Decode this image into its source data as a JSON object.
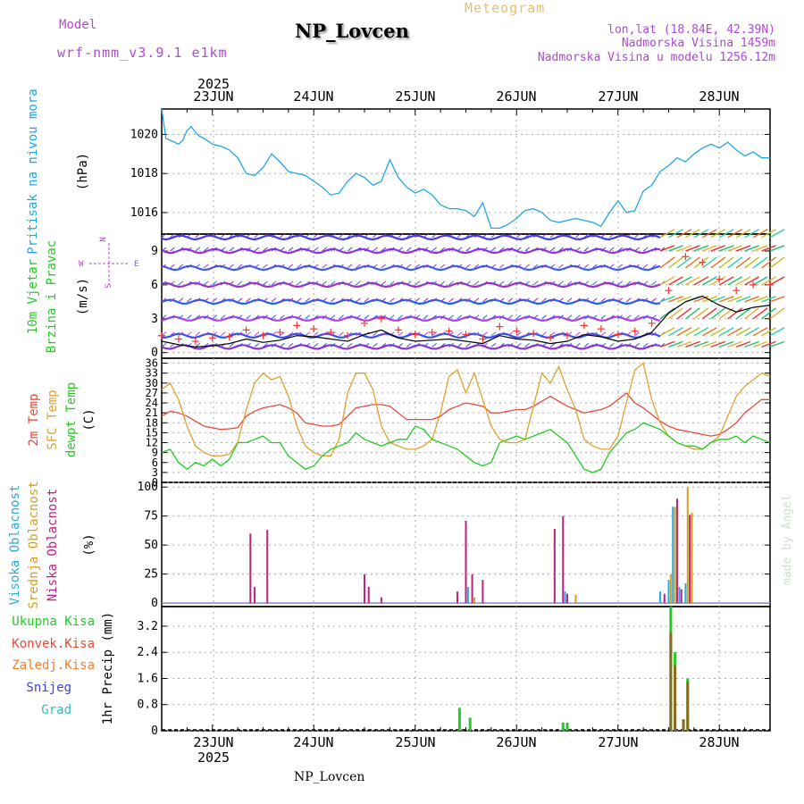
{
  "header": {
    "model_label": "Model",
    "model_name": "wrf-nmm_v3.9.1 e1km",
    "station": "NP_Lovcen",
    "title": "Meteogram",
    "lonlat": "lon,lat (18.84E, 42.39N)",
    "altitude": "Nadmorska Visina 1459m",
    "model_altitude": "Nadmorska Visina u modelu 1256.12m",
    "footer": "NP_Lovcen",
    "credit": "made by Angel"
  },
  "colors": {
    "pressure": "#1ea7e6",
    "wind_speed": "#000000",
    "gust": "#ff3030",
    "temp2m": "#e84a3a",
    "sfc": "#e0a030",
    "dew": "#22cc22",
    "high_cloud": "#2aaae0",
    "mid_cloud": "#d4a020",
    "low_cloud": "#c02080",
    "total_precip": "#22cc22",
    "conv_precip": "#e84a3a",
    "frozen_precip": "#f08030",
    "snow": "#4040dd",
    "hail": "#30c0c0",
    "magenta": "#b048d8"
  },
  "chart_data": [
    {
      "type": "line",
      "panel": "pressure",
      "ylabel_main": "Pritisak na nivou mora",
      "ylabel_unit": "(hPa)",
      "yticks": [
        "1016",
        "1018",
        "1020"
      ],
      "ylim": [
        1014.9,
        1021.3
      ],
      "xlim": [
        0,
        144
      ],
      "x_start_hour": 12,
      "x_axis_year": "2025",
      "x_axis_days": [
        "23JUN",
        "24JUN",
        "25JUN",
        "26JUN",
        "27JUN",
        "28JUN"
      ],
      "grid": true,
      "series": [
        {
          "color": "#1ea7e6",
          "x": [
            0,
            1,
            2,
            3,
            4,
            5,
            6,
            7,
            8,
            9,
            10,
            12,
            14,
            16,
            18,
            20,
            22,
            24,
            26,
            28,
            30,
            32,
            34,
            36,
            38,
            40,
            42,
            44,
            46,
            48,
            50,
            52,
            54,
            56,
            58,
            60,
            62,
            64,
            66,
            68,
            70,
            72,
            74,
            76,
            78,
            80,
            82,
            84,
            86,
            88,
            90,
            92,
            94,
            96,
            98,
            100,
            102,
            104,
            106,
            108,
            110,
            112,
            114,
            116,
            118,
            120,
            122,
            124,
            126,
            128,
            130,
            132,
            134,
            136,
            138,
            140,
            142,
            144
          ],
          "y": [
            1021.3,
            1019.8,
            1019.7,
            1019.6,
            1019.5,
            1019.7,
            1020.2,
            1020.4,
            1020.1,
            1019.9,
            1019.8,
            1019.5,
            1019.4,
            1019.2,
            1018.8,
            1018,
            1017.9,
            1018.3,
            1019,
            1018.6,
            1018.1,
            1018,
            1017.9,
            1017.6,
            1017.3,
            1016.9,
            1017,
            1017.6,
            1018,
            1017.8,
            1017.4,
            1017.6,
            1018.7,
            1017.8,
            1017.3,
            1017,
            1017.2,
            1016.9,
            1016.4,
            1016.2,
            1016.2,
            1016.1,
            1015.8,
            1016.5,
            1015.2,
            1015.2,
            1015.4,
            1015.7,
            1016.1,
            1016.2,
            1016.0,
            1015.6,
            1015.5,
            1015.6,
            1015.7,
            1015.6,
            1015.5,
            1015.3,
            1016.0,
            1016.6,
            1016.0,
            1016.1,
            1017.1,
            1017.4,
            1018.1,
            1018.4,
            1018.8,
            1018.6,
            1019.0,
            1019.3,
            1019.5,
            1019.3,
            1019.6,
            1019.2,
            1018.9,
            1019.1,
            1018.8,
            1018.8
          ]
        }
      ]
    },
    {
      "type": "line",
      "panel": "wind",
      "ylabel_main": "10m Vjetar",
      "ylabel_sub": "Brzina i Pravac",
      "ylabel_unit": "(m/s)",
      "direction_key": [
        "N",
        "W",
        "E",
        "S"
      ],
      "yticks": [
        "0",
        "3",
        "6",
        "9"
      ],
      "ylim": [
        -0.5,
        10.5
      ],
      "xlim": [
        0,
        144
      ],
      "grid": true,
      "series": [
        {
          "name": "wind speed",
          "color": "#000000",
          "x": [
            0,
            4,
            8,
            12,
            16,
            20,
            24,
            28,
            32,
            36,
            40,
            44,
            48,
            52,
            56,
            60,
            64,
            68,
            72,
            76,
            80,
            84,
            88,
            92,
            96,
            100,
            104,
            108,
            112,
            116,
            120,
            124,
            128,
            132,
            136,
            140,
            144
          ],
          "y": [
            1.0,
            0.7,
            0.5,
            0.6,
            0.8,
            1.2,
            0.9,
            1.1,
            1.5,
            1.4,
            1.2,
            1.0,
            1.6,
            2.0,
            1.3,
            1.0,
            1.1,
            1.2,
            1.0,
            0.8,
            1.5,
            1.2,
            1.1,
            0.8,
            1.0,
            1.6,
            1.4,
            1.0,
            1.2,
            1.8,
            3.5,
            4.5,
            5.0,
            4.2,
            3.6,
            4.0,
            4.2
          ]
        },
        {
          "name": "gust",
          "color": "#ff3030",
          "x": [
            0,
            4,
            8,
            12,
            16,
            20,
            24,
            28,
            32,
            36,
            40,
            44,
            48,
            52,
            56,
            60,
            64,
            68,
            72,
            76,
            80,
            84,
            88,
            92,
            96,
            100,
            104,
            108,
            112,
            116,
            120,
            124,
            128,
            132,
            136,
            140,
            144
          ],
          "y": [
            1.5,
            1.2,
            1.0,
            1.3,
            1.4,
            2.0,
            1.5,
            1.8,
            2.4,
            2.1,
            1.8,
            1.5,
            2.6,
            3.0,
            2.0,
            1.6,
            1.8,
            1.9,
            1.6,
            1.2,
            2.3,
            1.9,
            1.7,
            1.3,
            1.5,
            2.4,
            2.1,
            1.6,
            1.9,
            2.6,
            5.5,
            8.5,
            8.0,
            6.5,
            5.5,
            6.0,
            6.0
          ]
        }
      ]
    },
    {
      "type": "line",
      "panel": "temperature",
      "ylabel_main": "2m Temp",
      "ylabel_sub": "SFC Temp",
      "ylabel_sub2": "dewpt Temp",
      "ylabel_unit": "(C)",
      "yticks": [
        "0",
        "3",
        "6",
        "9",
        "12",
        "15",
        "18",
        "21",
        "24",
        "27",
        "30",
        "33",
        "36"
      ],
      "ylim": [
        0,
        37.5
      ],
      "xlim": [
        0,
        144
      ],
      "grid": true,
      "series": [
        {
          "name": "2m Temp",
          "color": "#e84a3a",
          "x": [
            0,
            2,
            4,
            6,
            8,
            10,
            12,
            14,
            16,
            18,
            20,
            22,
            24,
            26,
            28,
            30,
            32,
            34,
            36,
            38,
            40,
            42,
            44,
            46,
            48,
            50,
            52,
            54,
            56,
            58,
            60,
            62,
            64,
            66,
            68,
            70,
            72,
            74,
            76,
            78,
            80,
            82,
            84,
            86,
            88,
            90,
            92,
            94,
            96,
            98,
            100,
            102,
            104,
            106,
            108,
            110,
            112,
            114,
            116,
            118,
            120,
            122,
            124,
            126,
            128,
            130,
            132,
            134,
            136,
            138,
            140,
            142,
            144
          ],
          "y": [
            20,
            21.5,
            21,
            20,
            18.5,
            17,
            16.5,
            16,
            16.2,
            16.5,
            20,
            21.5,
            22.5,
            23,
            23.5,
            22.5,
            21,
            18,
            17.5,
            17,
            17,
            17.5,
            20,
            22.5,
            23,
            23.5,
            23.5,
            23,
            21,
            19,
            19,
            19,
            19,
            20,
            22,
            23,
            24,
            23.5,
            23,
            21,
            21,
            21.5,
            22,
            22,
            23,
            24.5,
            26,
            24.5,
            23,
            22,
            21,
            21.5,
            22,
            23,
            25,
            27,
            24,
            22.5,
            20.5,
            18.5,
            17,
            16,
            15.5,
            15,
            14.5,
            14,
            14.5,
            16,
            18,
            21,
            23,
            25,
            25
          ]
        },
        {
          "name": "SFC Temp",
          "color": "#e0a030",
          "x": [
            0,
            2,
            4,
            6,
            8,
            10,
            12,
            14,
            16,
            18,
            20,
            22,
            24,
            26,
            28,
            30,
            32,
            34,
            36,
            38,
            40,
            42,
            44,
            46,
            48,
            50,
            52,
            54,
            56,
            58,
            60,
            62,
            64,
            66,
            68,
            70,
            72,
            74,
            76,
            78,
            80,
            82,
            84,
            86,
            88,
            90,
            92,
            94,
            96,
            98,
            100,
            102,
            104,
            106,
            108,
            110,
            112,
            114,
            116,
            118,
            120,
            122,
            124,
            126,
            128,
            130,
            132,
            134,
            136,
            138,
            140,
            142,
            144
          ],
          "y": [
            28,
            30,
            25,
            17,
            11,
            9,
            8,
            8,
            8.5,
            12,
            22,
            30,
            33,
            31,
            32,
            26,
            17,
            11,
            9,
            8,
            8,
            13,
            27,
            33,
            33,
            28,
            17,
            12,
            11,
            10,
            10,
            11,
            13,
            21,
            32,
            34,
            27,
            33,
            25,
            17,
            13,
            12,
            12,
            13,
            23,
            33,
            30,
            35,
            28,
            22,
            13,
            11,
            10,
            10,
            14,
            24,
            34,
            36,
            25,
            18,
            14,
            12,
            11,
            10,
            10,
            12,
            14,
            20,
            26,
            29,
            31,
            33,
            32
          ]
        },
        {
          "name": "dewpt Temp",
          "color": "#22cc22",
          "x": [
            0,
            2,
            4,
            6,
            8,
            10,
            12,
            14,
            16,
            18,
            20,
            22,
            24,
            26,
            28,
            30,
            32,
            34,
            36,
            38,
            40,
            42,
            44,
            46,
            48,
            50,
            52,
            54,
            56,
            58,
            60,
            62,
            64,
            66,
            68,
            70,
            72,
            74,
            76,
            78,
            80,
            82,
            84,
            86,
            88,
            90,
            92,
            94,
            96,
            98,
            100,
            102,
            104,
            106,
            108,
            110,
            112,
            114,
            116,
            118,
            120,
            122,
            124,
            126,
            128,
            130,
            132,
            134,
            136,
            138,
            140,
            142,
            144
          ],
          "y": [
            9,
            10,
            6,
            4,
            6,
            5,
            7,
            5,
            7,
            12,
            12,
            13,
            14,
            12,
            12,
            8,
            6,
            4,
            5,
            8,
            10,
            11,
            12,
            15,
            13,
            12,
            11,
            12,
            13,
            13,
            17,
            16,
            13,
            12,
            11,
            10,
            8,
            6,
            5,
            6,
            12,
            13,
            14,
            13,
            14,
            15,
            16,
            14,
            12,
            8,
            4,
            3,
            4,
            9,
            12,
            15,
            16,
            18,
            17,
            16,
            14,
            12,
            11,
            11,
            10,
            12,
            13,
            13,
            14,
            12,
            14,
            13,
            12
          ]
        }
      ]
    },
    {
      "type": "bar",
      "panel": "clouds",
      "ylabel_main": "Visoka Oblacnost",
      "ylabel_sub": "Srednja Oblacnost",
      "ylabel_sub2": "Niska Oblacnost",
      "ylabel_unit": "(%)",
      "yticks": [
        "0",
        "25",
        "50",
        "75",
        "100"
      ],
      "ylim": [
        -3,
        104
      ],
      "xlim": [
        0,
        144
      ],
      "grid": true,
      "bars": [
        {
          "x": 21,
          "value": 60,
          "layer": "low"
        },
        {
          "x": 22,
          "value": 14,
          "layer": "low"
        },
        {
          "x": 25,
          "value": 63,
          "layer": "low"
        },
        {
          "x": 48,
          "value": 25,
          "layer": "low"
        },
        {
          "x": 49,
          "value": 14,
          "layer": "low"
        },
        {
          "x": 52,
          "value": 5,
          "layer": "low"
        },
        {
          "x": 70,
          "value": 10,
          "layer": "low"
        },
        {
          "x": 72,
          "value": 71,
          "layer": "low"
        },
        {
          "x": 72.5,
          "value": 14,
          "layer": "high"
        },
        {
          "x": 73.5,
          "value": 25,
          "layer": "low"
        },
        {
          "x": 74,
          "value": 5,
          "layer": "mid"
        },
        {
          "x": 76,
          "value": 20,
          "layer": "low"
        },
        {
          "x": 93,
          "value": 64,
          "layer": "low"
        },
        {
          "x": 95,
          "value": 75,
          "layer": "low"
        },
        {
          "x": 95.5,
          "value": 10,
          "layer": "high"
        },
        {
          "x": 96,
          "value": 8,
          "layer": "low"
        },
        {
          "x": 98,
          "value": 7,
          "layer": "mid"
        },
        {
          "x": 118,
          "value": 10,
          "layer": "high"
        },
        {
          "x": 119,
          "value": 8,
          "layer": "low"
        },
        {
          "x": 120,
          "value": 20,
          "layer": "high"
        },
        {
          "x": 120.5,
          "value": 25,
          "layer": "mid"
        },
        {
          "x": 121,
          "value": 83,
          "layer": "high"
        },
        {
          "x": 121.5,
          "value": 83,
          "layer": "mid"
        },
        {
          "x": 122,
          "value": 90,
          "layer": "low"
        },
        {
          "x": 122.5,
          "value": 14,
          "layer": "high"
        },
        {
          "x": 123,
          "value": 12,
          "layer": "low"
        },
        {
          "x": 124,
          "value": 17,
          "layer": "high"
        },
        {
          "x": 124.5,
          "value": 100,
          "layer": "mid"
        },
        {
          "x": 125,
          "value": 76,
          "layer": "low"
        },
        {
          "x": 125.5,
          "value": 78,
          "layer": "mid"
        }
      ]
    },
    {
      "type": "bar",
      "panel": "precipitation",
      "legend": [
        "Ukupna Kisa",
        "Konvek.Kisa",
        "Zaledj.Kisa",
        "Snijeg",
        "Grad"
      ],
      "ylabel_main": "1hr Precip",
      "ylabel_unit": "(mm)",
      "yticks": [
        "0",
        "0.8",
        "1.6",
        "2.4",
        "3.2"
      ],
      "ylim": [
        0,
        3.8
      ],
      "xlim": [
        0,
        144
      ],
      "grid": true,
      "bars": [
        {
          "x": 70.5,
          "total": 0.7,
          "conv": 0
        },
        {
          "x": 73,
          "total": 0.4,
          "conv": 0
        },
        {
          "x": 95,
          "total": 0.25,
          "conv": 0
        },
        {
          "x": 96,
          "total": 0.25,
          "conv": 0
        },
        {
          "x": 120.5,
          "total": 3.8,
          "conv": 3.0
        },
        {
          "x": 121.5,
          "total": 2.4,
          "conv": 2.0
        },
        {
          "x": 123.5,
          "total": 0.35,
          "conv": 0.35
        },
        {
          "x": 124.5,
          "total": 1.6,
          "conv": 1.5
        }
      ]
    }
  ]
}
